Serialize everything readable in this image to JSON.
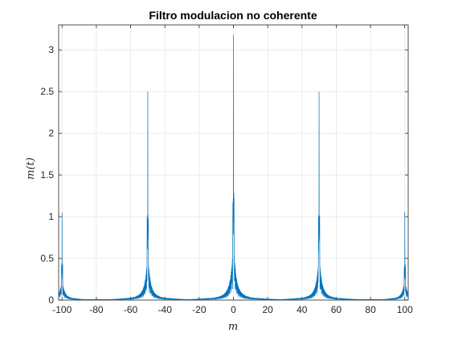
{
  "chart_data": {
    "type": "line",
    "title": "Filtro modulacion no coherente",
    "xlabel": "m",
    "ylabel": "m(t)",
    "xlim": [
      -102,
      102
    ],
    "ylim": [
      0,
      3.3
    ],
    "grid": true,
    "series_color": "#0072BD",
    "xticks": [
      -100,
      -80,
      -60,
      -40,
      -20,
      0,
      20,
      40,
      60,
      80,
      100
    ],
    "xtick_labels": [
      "-100",
      "-80",
      "-60",
      "-40",
      "-20",
      "0",
      "20",
      "40",
      "60",
      "80",
      "100"
    ],
    "yticks": [
      0,
      0.5,
      1,
      1.5,
      2,
      2.5,
      3
    ],
    "ytick_labels": [
      "0",
      "0.5",
      "1",
      "1.5",
      "2",
      "2.5",
      "3"
    ],
    "peaks": [
      {
        "x": -100,
        "y": 1.05
      },
      {
        "x": -50,
        "y": 2.5
      },
      {
        "x": 0,
        "y": 3.18
      },
      {
        "x": 50,
        "y": 2.5
      },
      {
        "x": 100,
        "y": 1.06
      }
    ],
    "secondary_peaks": [
      {
        "x": -100,
        "y": 0.44
      },
      {
        "x": -50,
        "y": 1.02
      },
      {
        "x": 0,
        "y": 1.3
      },
      {
        "x": 50,
        "y": 1.02
      },
      {
        "x": 100,
        "y": 0.44
      }
    ]
  }
}
